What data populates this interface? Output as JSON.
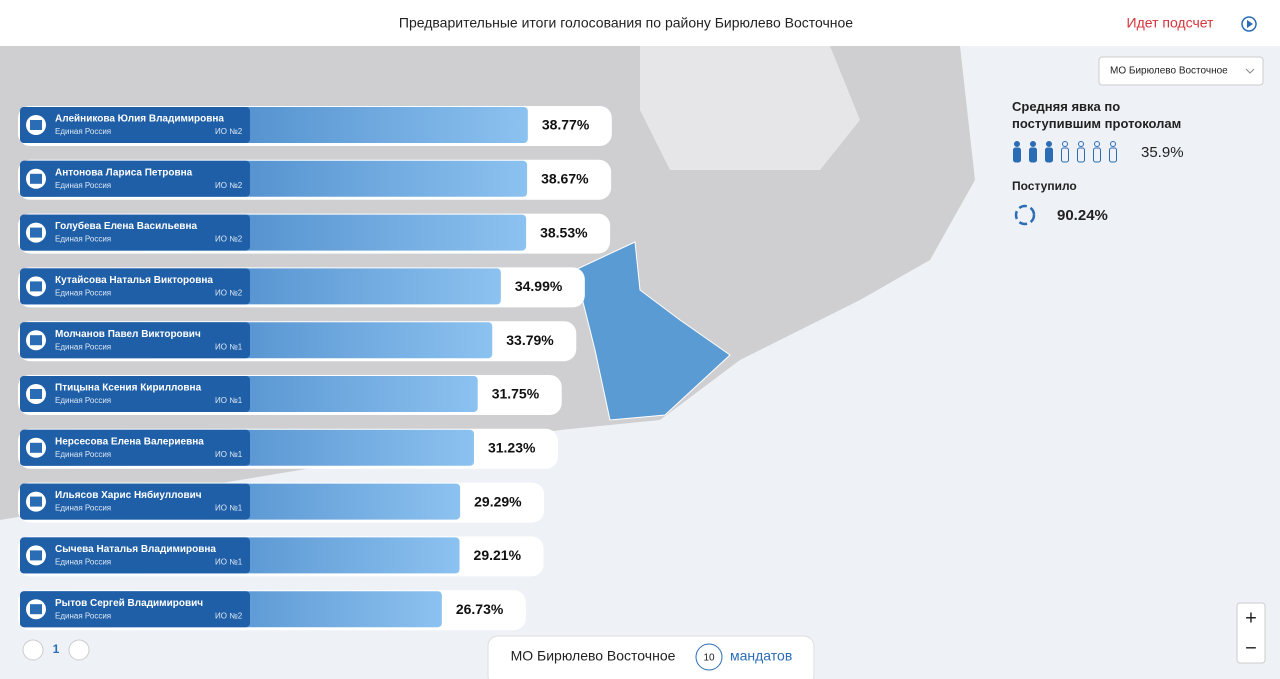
{
  "header": {
    "title": "Предварительные итоги голосования по району Бирюлево Восточное",
    "status": "Идет подсчет"
  },
  "district_select": "МО Бирюлево Восточное",
  "stats": {
    "turnout_title": "Средняя явка по поступившим протоколам",
    "turnout_value": "35.9%",
    "received_title": "Поступило",
    "received_value": "90.24%"
  },
  "candidates": [
    {
      "name": "Алейникова Юлия Владимировна",
      "party": "Единая Россия",
      "district": "ИО №2",
      "value": 38.77,
      "label": "38.77%"
    },
    {
      "name": "Антонова Лариса Петровна",
      "party": "Единая Россия",
      "district": "ИО №2",
      "value": 38.67,
      "label": "38.67%"
    },
    {
      "name": "Голубева Елена Васильевна",
      "party": "Единая Россия",
      "district": "ИО №2",
      "value": 38.53,
      "label": "38.53%"
    },
    {
      "name": "Кутайсова Наталья Викторовна",
      "party": "Единая Россия",
      "district": "ИО №2",
      "value": 34.99,
      "label": "34.99%"
    },
    {
      "name": "Молчанов Павел Викторович",
      "party": "Единая Россия",
      "district": "ИО №1",
      "value": 33.79,
      "label": "33.79%"
    },
    {
      "name": "Птицына Ксения Кирилловна",
      "party": "Единая Россия",
      "district": "ИО №1",
      "value": 31.75,
      "label": "31.75%"
    },
    {
      "name": "Нерсесова Елена Валериевна",
      "party": "Единая Россия",
      "district": "ИО №1",
      "value": 31.23,
      "label": "31.23%"
    },
    {
      "name": "Ильясов Харис Нябиуллович",
      "party": "Единая Россия",
      "district": "ИО №1",
      "value": 29.29,
      "label": "29.29%"
    },
    {
      "name": "Сычева Наталья Владимировна",
      "party": "Единая Россия",
      "district": "ИО №1",
      "value": 29.21,
      "label": "29.21%"
    },
    {
      "name": "Рытов Сергей Владимирович",
      "party": "Единая Россия",
      "district": "ИО №2",
      "value": 26.73,
      "label": "26.73%"
    }
  ],
  "pagination": {
    "page": "1"
  },
  "footer": {
    "district": "МО Бирюлево Восточное",
    "mandates_count": "10",
    "mandates_label": "мандатов"
  },
  "zoom": {
    "in": "+",
    "out": "−"
  }
}
